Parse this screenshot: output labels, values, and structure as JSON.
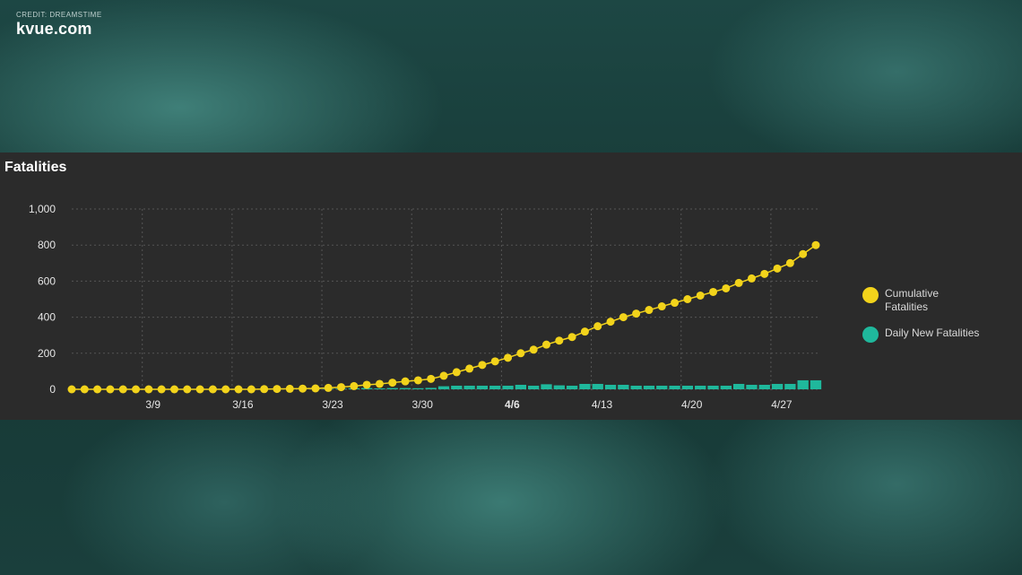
{
  "overlay": {
    "credit": "CREDIT: DREAMSTIME",
    "brand": "kvue.com"
  },
  "panel": {
    "title": "Fatalities"
  },
  "legend": [
    {
      "label": "Cumulative Fatalities",
      "color": "#f2d31b"
    },
    {
      "label": "Daily New Fatalities",
      "color": "#1fb89c"
    }
  ],
  "chart_data": {
    "type": "line",
    "title": "Fatalities",
    "xlabel": "",
    "ylabel": "",
    "ylim": [
      0,
      1000
    ],
    "yticks": [
      0,
      200,
      400,
      600,
      800,
      1000
    ],
    "ytick_labels": [
      "0",
      "200",
      "400",
      "600",
      "800",
      "1,000"
    ],
    "x": [
      "3/3",
      "3/4",
      "3/5",
      "3/6",
      "3/7",
      "3/8",
      "3/9",
      "3/10",
      "3/11",
      "3/12",
      "3/13",
      "3/14",
      "3/15",
      "3/16",
      "3/17",
      "3/18",
      "3/19",
      "3/20",
      "3/21",
      "3/22",
      "3/23",
      "3/24",
      "3/25",
      "3/26",
      "3/27",
      "3/28",
      "3/29",
      "3/30",
      "3/31",
      "4/1",
      "4/2",
      "4/3",
      "4/4",
      "4/5",
      "4/6",
      "4/7",
      "4/8",
      "4/9",
      "4/10",
      "4/11",
      "4/12",
      "4/13",
      "4/14",
      "4/15",
      "4/16",
      "4/17",
      "4/18",
      "4/19",
      "4/20",
      "4/21",
      "4/22",
      "4/23",
      "4/24",
      "4/25",
      "4/26",
      "4/27",
      "4/28",
      "4/29",
      "4/30"
    ],
    "xtick_labels": [
      "3/9",
      "3/16",
      "3/23",
      "3/30",
      "4/6",
      "4/13",
      "4/20",
      "4/27"
    ],
    "grid": true,
    "legend_position": "right",
    "series": [
      {
        "name": "Cumulative Fatalities",
        "type": "line",
        "color": "#f2d31b",
        "values": [
          0,
          0,
          0,
          0,
          0,
          0,
          0,
          0,
          0,
          0,
          0,
          0,
          0,
          0,
          0,
          1,
          2,
          3,
          4,
          5,
          8,
          12,
          18,
          25,
          30,
          37,
          44,
          50,
          58,
          75,
          95,
          115,
          135,
          155,
          175,
          200,
          220,
          248,
          270,
          290,
          320,
          350,
          375,
          400,
          420,
          440,
          460,
          480,
          500,
          520,
          540,
          560,
          590,
          615,
          640,
          670,
          700,
          750,
          800
        ]
      },
      {
        "name": "Daily New Fatalities",
        "type": "bar",
        "color": "#1fb89c",
        "values": [
          0,
          0,
          0,
          0,
          0,
          0,
          0,
          0,
          0,
          0,
          0,
          0,
          0,
          0,
          0,
          1,
          1,
          1,
          1,
          1,
          3,
          4,
          6,
          7,
          5,
          7,
          7,
          6,
          8,
          17,
          20,
          20,
          20,
          20,
          20,
          25,
          20,
          28,
          22,
          20,
          30,
          30,
          25,
          25,
          20,
          20,
          20,
          20,
          20,
          20,
          20,
          20,
          30,
          25,
          25,
          30,
          30,
          50,
          50
        ]
      }
    ]
  }
}
